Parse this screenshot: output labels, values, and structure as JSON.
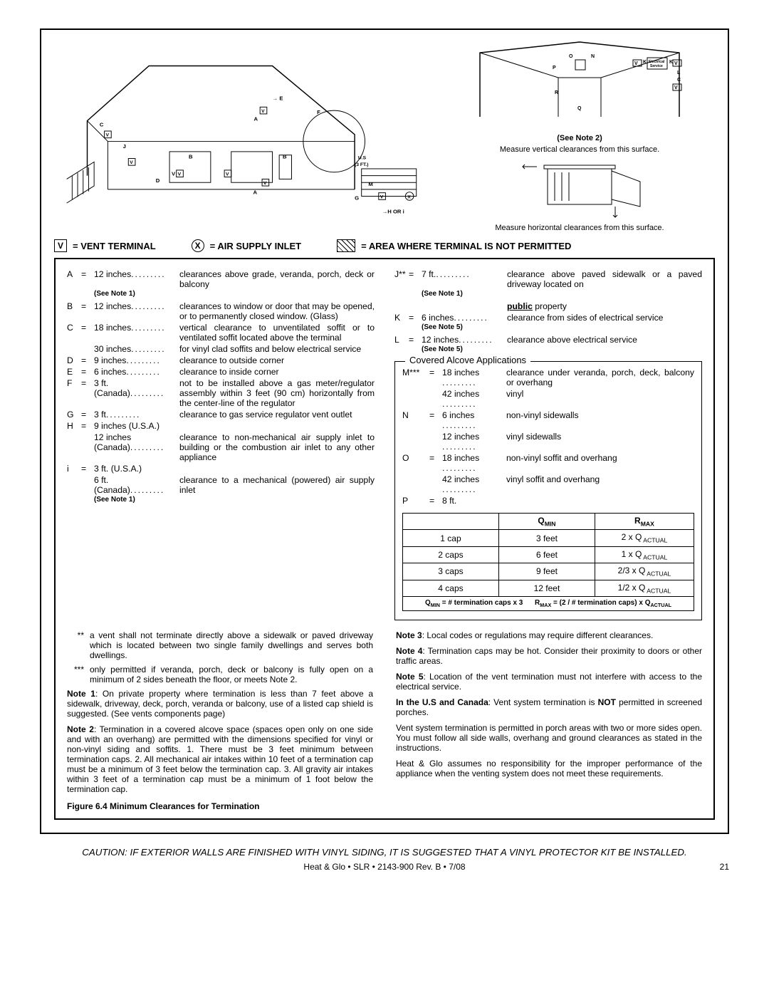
{
  "legend": {
    "v_symbol": "V",
    "v_label": "= VENT  TERMINAL",
    "x_symbol": "X",
    "x_label": "= AIR SUPPLY INLET",
    "hatch_label": "= AREA WHERE TERMINAL IS NOT PERMITTED"
  },
  "diagram_left": {
    "labels": {
      "A": "A",
      "B": "B",
      "C": "C",
      "D": "D",
      "E": "E",
      "F": "F",
      "G": "G",
      "H": "H OR i",
      "J": "J",
      "M": "M",
      "V": "V",
      "X": "X",
      "US": "U.S",
      "US_dist": "(3 FT.)"
    }
  },
  "diagram_right_top": {
    "labels": {
      "O": "O",
      "N": "N",
      "P": "P",
      "R": "R",
      "Q": "Q",
      "K": "K",
      "L": "L",
      "C": "C",
      "V": "V"
    },
    "see_note": "(See Note 2)",
    "elec": "Electrical Service"
  },
  "diagram_right_bottom": {
    "vert": "Measure vertical clearances from this surface.",
    "horiz": "Measure horizontal clearances from this surface."
  },
  "left_list": [
    {
      "letter": "A",
      "value": "12 inches",
      "note": "(See Note 1)",
      "desc": "clearances above grade, veranda, porch, deck or balcony"
    },
    {
      "letter": "B",
      "value": "12 inches",
      "desc": "clearances to window or door that may be opened, or to permanently closed window. (Glass)"
    },
    {
      "letter": "C",
      "value": "18 inches",
      "desc": "vertical clearance to unventilated soffit or to ventilated soffit located above the terminal"
    },
    {
      "letter": "",
      "value": "30 inches",
      "desc": "for vinyl clad soffits and below electrical service"
    },
    {
      "letter": "D",
      "value": "9 inches",
      "desc": "clearance to outside corner"
    },
    {
      "letter": "E",
      "value": "6 inches",
      "desc": "clearance to inside corner"
    },
    {
      "letter": "F",
      "value": "3 ft. (Canada)",
      "desc": "not to be installed above a gas meter/regulator assembly within 3 feet (90 cm) horizontally from the center-line of the regulator"
    },
    {
      "letter": "G",
      "value": "3 ft",
      "desc": "clearance to gas service regulator vent outlet"
    },
    {
      "letter": "H",
      "value": "9 inches (U.S.A.)",
      "desc": ""
    },
    {
      "letter": "",
      "value": "12 inches (Canada)",
      "desc": "clearance to non-mechanical air supply inlet to building or the combustion air inlet to any other appliance"
    },
    {
      "letter": "i",
      "value": "3 ft. (U.S.A.)",
      "desc": ""
    },
    {
      "letter": "",
      "value": "6 ft. (Canada)",
      "note": "(See Note 1)",
      "desc": "clearance to a mechanical (powered) air supply inlet"
    }
  ],
  "right_list": [
    {
      "letter": "J**",
      "value": "7 ft.",
      "note": "(See Note 1)",
      "desc": "clearance above paved sidewalk or a paved driveway located on "
    },
    {
      "letter": "",
      "value": "",
      "desc_bold": "public",
      "desc2": " property"
    },
    {
      "letter": "K",
      "value": "6 inches",
      "note": "(See Note 5)",
      "desc": "clearance from sides of electrical service"
    },
    {
      "letter": "L",
      "value": "12 inches",
      "note": "(See Note 5)",
      "desc": "clearance above electrical service"
    }
  ],
  "alcove": {
    "title": "Covered Alcove Applications",
    "rows": [
      {
        "letter": "M***",
        "value": "18 inches",
        "desc": "clearance under veranda, porch, deck, balcony or overhang"
      },
      {
        "letter": "",
        "value": "42 inches",
        "desc": "vinyl"
      },
      {
        "letter": "N",
        "value": "6 inches",
        "desc": "non-vinyl sidewalls"
      },
      {
        "letter": "",
        "value": "12 inches",
        "desc": "vinyl sidewalls"
      },
      {
        "letter": "O",
        "value": "18 inches",
        "desc": "non-vinyl soffit and overhang"
      },
      {
        "letter": "",
        "value": "42 inches",
        "desc": "vinyl soffit and overhang"
      },
      {
        "letter": "P",
        "value": "8 ft.",
        "desc": ""
      }
    ],
    "table": {
      "head": [
        "",
        "Q",
        "R"
      ],
      "head_sub": [
        "",
        "MIN",
        "MAX"
      ],
      "rows": [
        [
          "1 cap",
          "3 feet",
          "2 x Q"
        ],
        [
          "2 caps",
          "6 feet",
          "1 x Q"
        ],
        [
          "3 caps",
          "9 feet",
          "2/3 x Q"
        ],
        [
          "4 caps",
          "12 feet",
          "1/2 x Q"
        ]
      ],
      "r_unit": " ACTUAL",
      "formula_left": "Q",
      "formula_left2": " = # termination caps x 3",
      "formula_right": "R",
      "formula_right2": " = (2 / # termination caps) x Q",
      "formula_min": "MIN",
      "formula_max": "MAX",
      "formula_actual": "ACTUAL"
    }
  },
  "notes_left": [
    {
      "mark": "**",
      "text": "a vent shall not terminate directly above a sidewalk or paved driveway which is located between two single family dwellings and serves both dwellings."
    },
    {
      "mark": "***",
      "text": "only permitted if veranda, porch, deck or balcony is fully open on a minimum of 2 sides beneath the floor, or meets Note 2."
    }
  ],
  "notes_left_paras": [
    {
      "bold": "Note 1",
      "text": ": On private property where termination is less than 7 feet above a sidewalk, driveway, deck, porch, veranda or balcony, use of a listed cap shield is suggested. (See vents components page)"
    },
    {
      "bold": "Note 2",
      "text": ": Termination in a covered alcove space (spaces open only on one side and with an overhang) are permitted with the dimensions specified for vinyl or non-vinyl siding and soffits. 1. There must be 3 feet minimum between termination caps. 2.  All mechanical air intakes within 10 feet of a termination cap must be a minimum of 3 feet below the termination cap. 3. All gravity air intakes within 3 feet of a termination cap must be a minimum of 1 foot below the termination cap."
    }
  ],
  "notes_right_paras": [
    {
      "bold": "Note 3",
      "text": ": Local codes or regulations may require different clearances."
    },
    {
      "bold": "Note 4",
      "text": ": Termination caps may be hot. Consider their proximity to doors or other traffic areas."
    },
    {
      "bold": "Note 5",
      "text": ": Location of the vent termination must not interfere with access to the electrical service."
    },
    {
      "bold": "In the U.S and Canada",
      "text": ": Vent system termination is ",
      "bold2": "NOT",
      "text2": " permitted in screened porches."
    },
    {
      "text": "Vent system termination is permitted in porch areas with two or more sides open. You must follow all side walls, overhang and ground clearances as stated in the instructions."
    },
    {
      "text": "Heat & Glo assumes no responsibility for the improper performance of the appliance when the venting system does not meet these requirements."
    }
  ],
  "figure_caption": "Figure 6.4  Minimum Clearances for Termination",
  "caution": "CAUTION: IF EXTERIOR WALLS ARE FINISHED WITH VINYL SIDING, IT IS SUGGESTED THAT A VINYL PROTECTOR KIT BE INSTALLED.",
  "footer": "Heat & Glo  •  SLR  •  2143-900 Rev. B  •  7/08",
  "page_number": "21"
}
